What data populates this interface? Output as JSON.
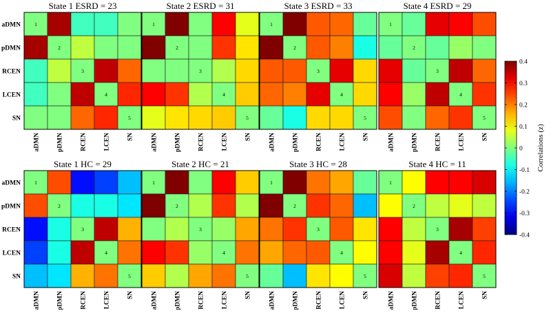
{
  "chart_data": {
    "type": "heatmap",
    "regions": [
      "aDMN",
      "pDMN",
      "RCEN",
      "LCEN",
      "SN"
    ],
    "diagonal_labels": [
      "1",
      "2",
      "3",
      "4",
      "5"
    ],
    "colorbar": {
      "label": "Correlations (z)",
      "range": [
        -0.4,
        0.4
      ],
      "ticks": [
        "0.4",
        "0.3",
        "0.2",
        "0.1",
        "0",
        "-0.1",
        "-0.2",
        "-0.3",
        "-0.4"
      ],
      "tick_values": [
        0.4,
        0.3,
        0.2,
        0.1,
        0,
        -0.1,
        -0.2,
        -0.3,
        -0.4
      ],
      "colormap": "jet"
    },
    "panels": [
      {
        "title": "State 1 ESRD = 23",
        "matrix": [
          [
            0.0,
            0.37,
            -0.05,
            -0.05,
            0.0
          ],
          [
            0.37,
            0.0,
            0.05,
            0.0,
            0.0
          ],
          [
            -0.05,
            0.05,
            0.0,
            0.35,
            0.22
          ],
          [
            -0.05,
            0.0,
            0.35,
            0.0,
            0.27
          ],
          [
            0.0,
            0.0,
            0.22,
            0.27,
            0.0
          ]
        ]
      },
      {
        "title": "State 2 ESRD = 31",
        "matrix": [
          [
            0.0,
            0.42,
            0.0,
            0.3,
            0.08
          ],
          [
            0.42,
            0.0,
            0.0,
            0.26,
            0.12
          ],
          [
            0.0,
            0.0,
            0.0,
            0.04,
            0.13
          ],
          [
            0.3,
            0.26,
            0.04,
            0.0,
            0.14
          ],
          [
            0.08,
            0.12,
            0.13,
            0.14,
            0.0
          ]
        ]
      },
      {
        "title": "State 3 ESRD = 33",
        "matrix": [
          [
            0.0,
            0.42,
            0.23,
            0.22,
            -0.02
          ],
          [
            0.42,
            0.0,
            0.23,
            0.2,
            -0.08
          ],
          [
            0.23,
            0.23,
            0.0,
            0.32,
            0.13
          ],
          [
            0.22,
            0.2,
            0.32,
            0.0,
            0.13
          ],
          [
            -0.02,
            -0.08,
            0.13,
            0.13,
            0.0
          ]
        ]
      },
      {
        "title": "State 4 ESRD = 29",
        "matrix": [
          [
            0.0,
            -0.02,
            0.32,
            0.3,
            0.24
          ],
          [
            -0.02,
            0.0,
            -0.02,
            0.02,
            0.0
          ],
          [
            0.32,
            -0.02,
            0.0,
            0.35,
            0.22
          ],
          [
            0.3,
            0.02,
            0.35,
            0.0,
            0.26
          ],
          [
            0.24,
            0.0,
            0.22,
            0.26,
            0.0
          ]
        ]
      },
      {
        "title": "State 1 HC = 29",
        "matrix": [
          [
            0.0,
            0.24,
            -0.29,
            -0.25,
            -0.15
          ],
          [
            0.24,
            0.0,
            -0.08,
            -0.08,
            -0.12
          ],
          [
            -0.29,
            -0.08,
            0.0,
            0.35,
            0.16
          ],
          [
            -0.25,
            -0.08,
            0.35,
            0.0,
            0.21
          ],
          [
            -0.15,
            -0.12,
            0.16,
            0.21,
            0.0
          ]
        ]
      },
      {
        "title": "State 2 HC = 21",
        "matrix": [
          [
            0.0,
            0.42,
            0.0,
            0.3,
            0.14
          ],
          [
            0.42,
            0.0,
            0.04,
            0.26,
            0.04
          ],
          [
            0.0,
            0.04,
            0.0,
            0.02,
            0.17
          ],
          [
            0.3,
            0.26,
            0.02,
            0.0,
            0.21
          ],
          [
            0.14,
            0.04,
            0.17,
            0.21,
            0.0
          ]
        ]
      },
      {
        "title": "State 3 HC = 28",
        "matrix": [
          [
            0.0,
            0.42,
            0.21,
            0.17,
            -0.02
          ],
          [
            0.42,
            0.0,
            0.26,
            0.22,
            -0.15
          ],
          [
            0.21,
            0.26,
            0.0,
            0.23,
            0.12
          ],
          [
            0.17,
            0.22,
            0.23,
            0.0,
            0.1
          ],
          [
            -0.02,
            -0.15,
            0.12,
            0.1,
            0.0
          ]
        ]
      },
      {
        "title": "State 4 HC = 11",
        "matrix": [
          [
            0.0,
            0.1,
            0.3,
            0.3,
            0.33
          ],
          [
            0.1,
            0.0,
            0.05,
            0.08,
            0.05
          ],
          [
            0.3,
            0.05,
            0.0,
            0.37,
            0.25
          ],
          [
            0.3,
            0.08,
            0.37,
            0.0,
            0.27
          ],
          [
            0.33,
            0.05,
            0.25,
            0.27,
            0.0
          ]
        ]
      }
    ]
  }
}
